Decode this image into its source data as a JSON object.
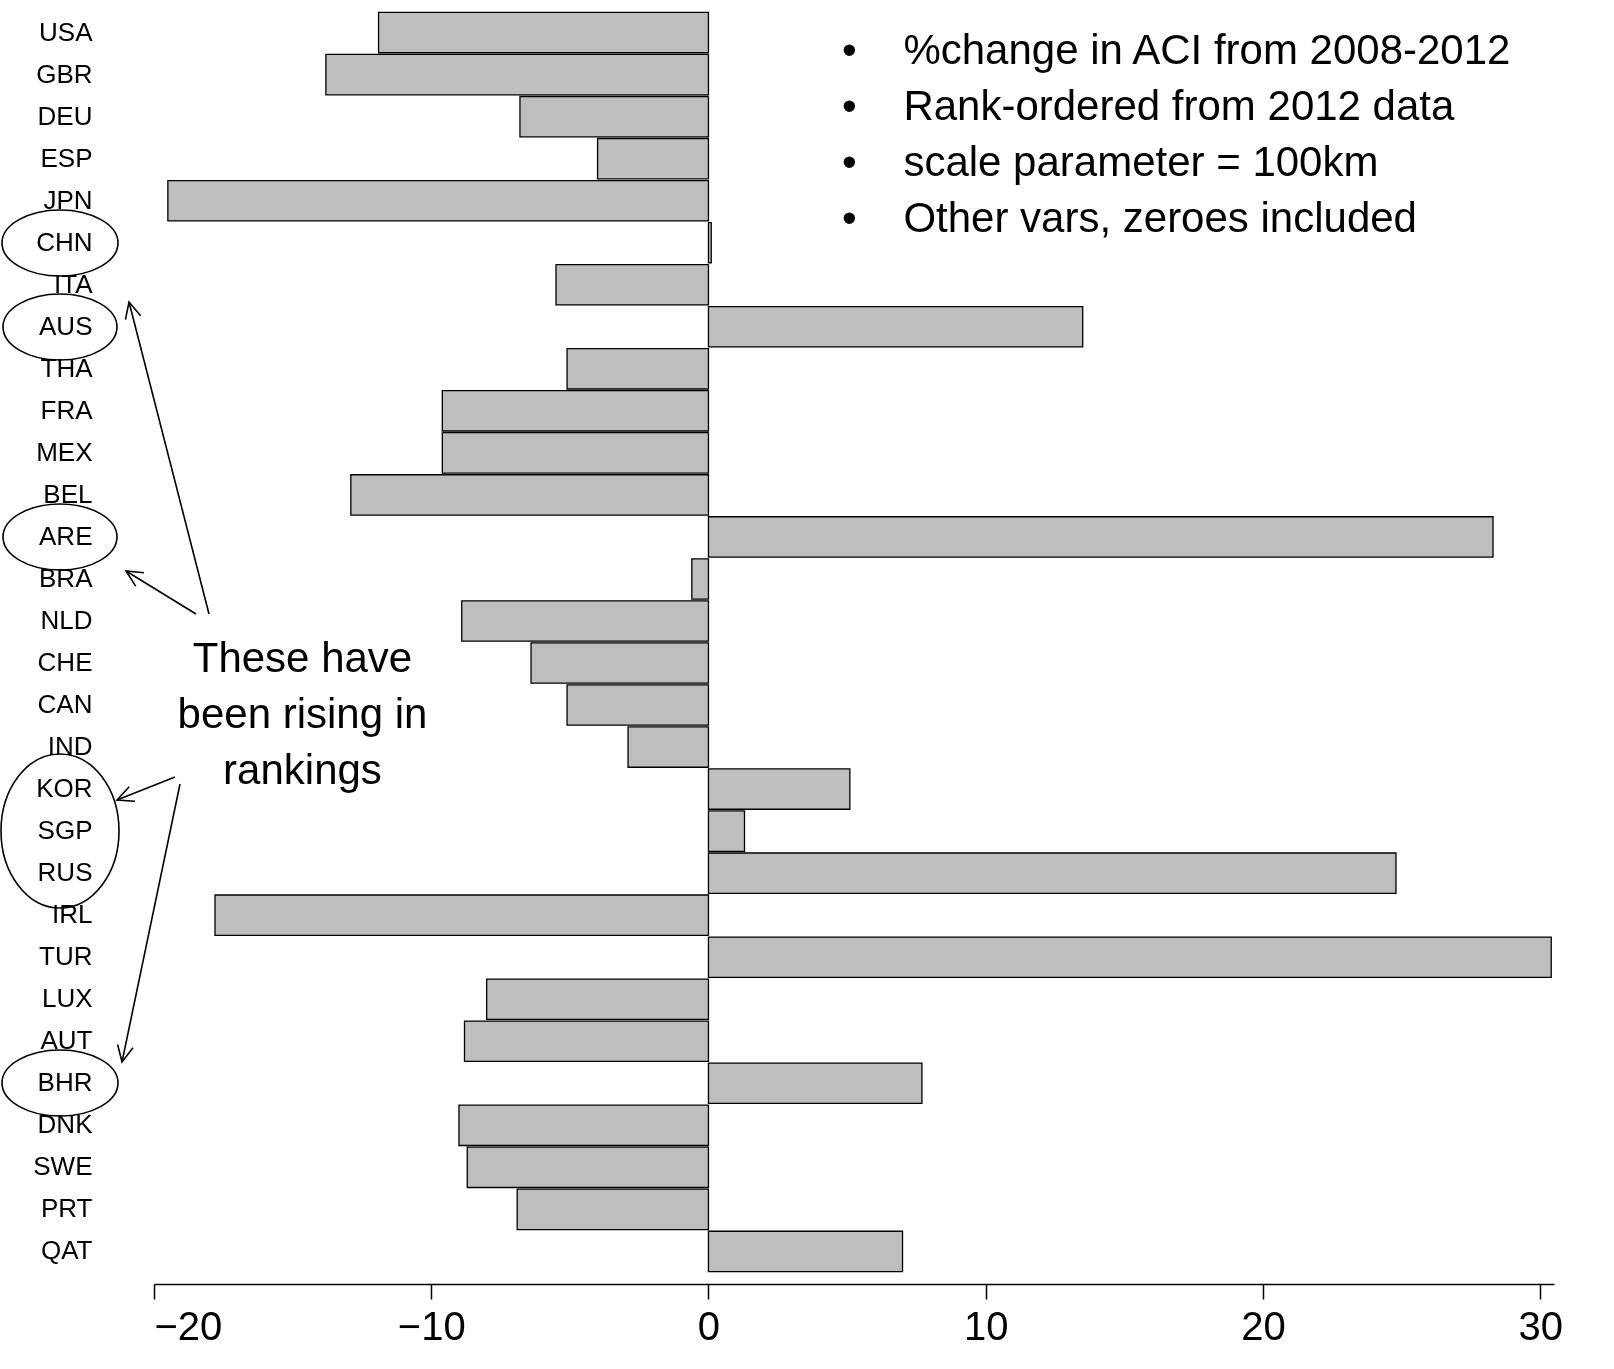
{
  "chart_data": {
    "type": "bar",
    "orientation": "horizontal",
    "categories": [
      "USA",
      "GBR",
      "DEU",
      "ESP",
      "JPN",
      "CHN",
      "ITA",
      "AUS",
      "THA",
      "FRA",
      "MEX",
      "BEL",
      "ARE",
      "BRA",
      "NLD",
      "CHE",
      "CAN",
      "IND",
      "KOR",
      "SGP",
      "RUS",
      "IRL",
      "TUR",
      "LUX",
      "AUT",
      "BHR",
      "DNK",
      "SWE",
      "PRT",
      "QAT"
    ],
    "values": [
      -11.9,
      -13.8,
      -6.8,
      -4.0,
      -19.5,
      0.1,
      -5.5,
      13.5,
      -5.1,
      -9.6,
      -9.6,
      -12.9,
      28.3,
      -0.6,
      -8.9,
      -6.4,
      -5.1,
      -2.9,
      5.1,
      1.3,
      24.8,
      -17.8,
      30.4,
      -8.0,
      -8.8,
      7.7,
      -9.0,
      -8.7,
      -6.9,
      7.0
    ],
    "color": "#bebebe",
    "xlim": [
      -20,
      30.5
    ],
    "xticks": [
      -20,
      -10,
      0,
      10,
      20,
      30
    ],
    "annotations": [
      "•    %change in ACI from 2008-2012",
      "•    Rank-ordered from 2012 data",
      "•    scale parameter = 100km",
      "•    Other vars, zeroes included",
      "These have been rising in rankings"
    ]
  }
}
